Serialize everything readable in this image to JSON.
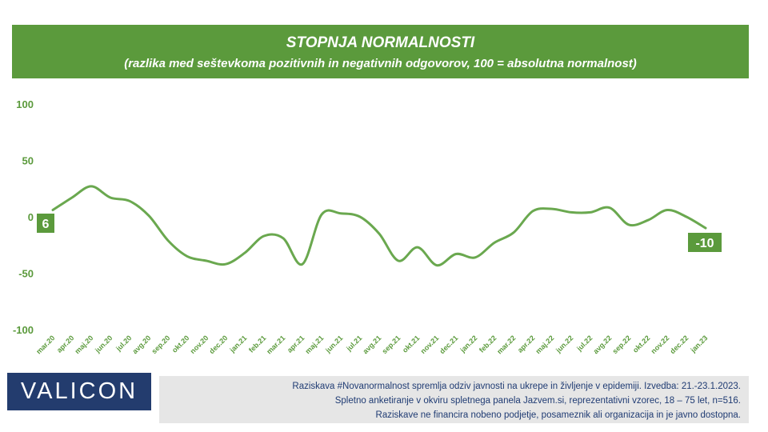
{
  "header": {
    "title": "STOPNJA NORMALNOSTI",
    "subtitle": "(razlika med seštevkoma pozitivnih in negativnih odgovorov, 100 = absolutna normalnost)"
  },
  "logo": {
    "text": "VALICON"
  },
  "footer": {
    "lines": [
      "Raziskava #Novanormalnost spremlja odziv javnosti na ukrepe in življenje v epidemiji. Izvedba: 21.-23.1.2023.",
      "Spletno anketiranje v okviru spletnega panela Jazvem.si, reprezentativni vzorec, 18 – 75 let, n=516.",
      "Raziskave ne financira nobeno podjetje, posameznik ali organizacija in je javno dostopna."
    ]
  },
  "colors": {
    "line": "#6aa84f",
    "banner": "#5b9a3c",
    "tick_text": "#5b9a3c",
    "label_box": "#5b9a3c",
    "logo": "#233c6e"
  },
  "chart_data": {
    "type": "line",
    "categories": [
      "mar.20",
      "apr.20",
      "maj.20",
      "jun.20",
      "jul.20",
      "avg.20",
      "sep.20",
      "okt.20",
      "nov.20",
      "dec.20",
      "jan.21",
      "feb.21",
      "mar.21",
      "apr.21",
      "maj.21",
      "jun.21",
      "jul.21",
      "avg.21",
      "sep.21",
      "okt.21",
      "nov.21",
      "dec.21",
      "jan.22",
      "feb.22",
      "mar.22",
      "apr.22",
      "maj.22",
      "jun.22",
      "jul.22",
      "avg.22",
      "sep.22",
      "okt.22",
      "nov.22",
      "dec.22",
      "jan.23"
    ],
    "values": [
      6,
      17,
      27,
      17,
      14,
      1,
      -21,
      -35,
      -39,
      -42,
      -32,
      -17,
      -19,
      -42,
      2,
      3,
      0,
      -15,
      -39,
      -27,
      -43,
      -33,
      -36,
      -23,
      -14,
      5,
      7,
      4,
      4,
      8,
      -7,
      -3,
      6,
      0,
      -10
    ],
    "yticks": [
      100,
      50,
      0,
      -50,
      -100
    ],
    "ylim": [
      -100,
      100
    ],
    "first_label": "6",
    "last_label": "-10",
    "grid": false
  }
}
